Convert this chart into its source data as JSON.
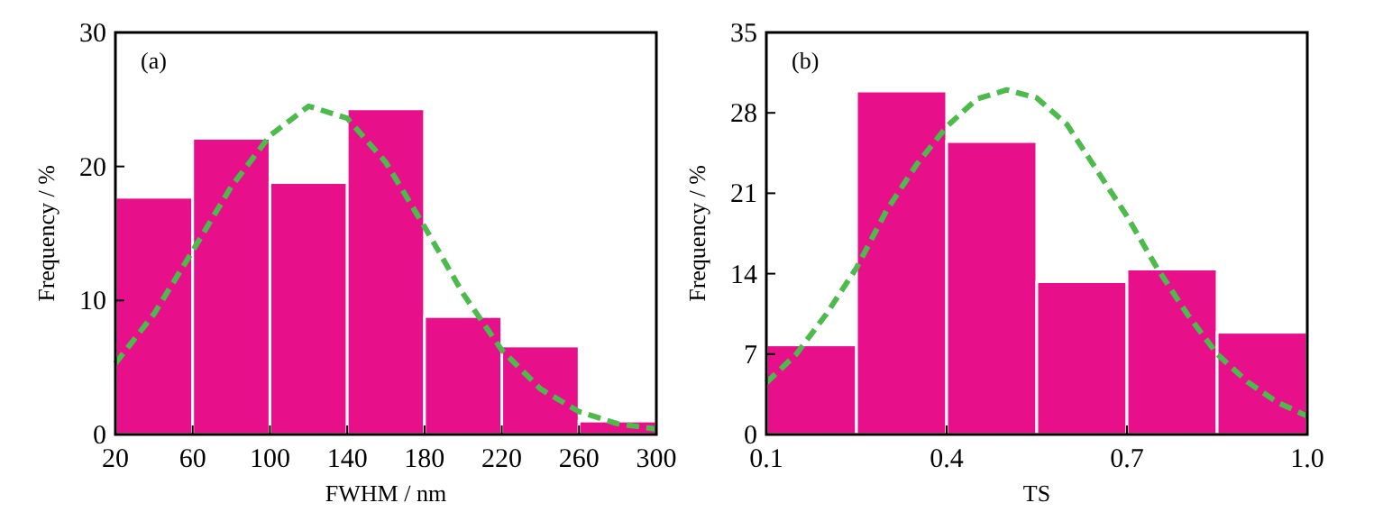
{
  "chart_data": [
    {
      "type": "histogram",
      "xlabel": "FWHM / nm",
      "ylabel": "Frequency / %",
      "annotations": [
        "(a)"
      ],
      "bins": [
        20,
        60,
        100,
        140,
        180,
        220,
        260,
        300
      ],
      "values": [
        17.7,
        22.1,
        18.8,
        24.3,
        8.8,
        6.6,
        1.0
      ],
      "color": "#e8108a",
      "xlim": [
        20,
        300
      ],
      "xticks": [
        20,
        60,
        100,
        140,
        180,
        220,
        260,
        300
      ],
      "ylim": [
        0,
        30
      ],
      "yticks": [
        0,
        10,
        20,
        30
      ],
      "grid": false,
      "series": [
        {
          "type": "line",
          "color": "#4cbb4c",
          "line_style": "dashed",
          "marker": "none",
          "x": [
            20,
            40,
            60,
            80,
            100,
            120,
            140,
            160,
            180,
            200,
            220,
            240,
            260,
            280,
            300
          ],
          "values": [
            5.3,
            9,
            13.7,
            18.5,
            22.3,
            24.5,
            23.6,
            20.3,
            15.5,
            10.5,
            6.3,
            3.4,
            1.7,
            0.8,
            0.4
          ]
        }
      ]
    },
    {
      "type": "histogram",
      "xlabel": "TS",
      "ylabel": "Frequency / %",
      "annotations": [
        "(b)"
      ],
      "bins": [
        0.1,
        0.25,
        0.4,
        0.55,
        0.7,
        0.85,
        1.0
      ],
      "values": [
        7.8,
        29.9,
        25.5,
        13.3,
        14.4,
        8.9
      ],
      "color": "#e8108a",
      "xlim": [
        0.1,
        1.0
      ],
      "xticks": [
        0.1,
        0.4,
        0.7,
        {
          "value": 1.0,
          "label": "1.0"
        }
      ],
      "ylim": [
        0,
        35
      ],
      "yticks": [
        0,
        7,
        14,
        21,
        28,
        35
      ],
      "grid": false,
      "series": [
        {
          "type": "line",
          "color": "#4cbb4c",
          "line_style": "dashed",
          "marker": "none",
          "x": [
            0.1,
            0.15,
            0.2,
            0.25,
            0.3,
            0.35,
            0.4,
            0.45,
            0.5,
            0.55,
            0.6,
            0.65,
            0.7,
            0.75,
            0.8,
            0.85,
            0.9,
            0.95,
            1.0
          ],
          "values": [
            4.5,
            7,
            10.5,
            14.5,
            19.5,
            23.5,
            26.8,
            29.2,
            30,
            29.3,
            27,
            23,
            19,
            14.5,
            10.5,
            7,
            4.6,
            2.8,
            1.6
          ]
        }
      ]
    }
  ]
}
